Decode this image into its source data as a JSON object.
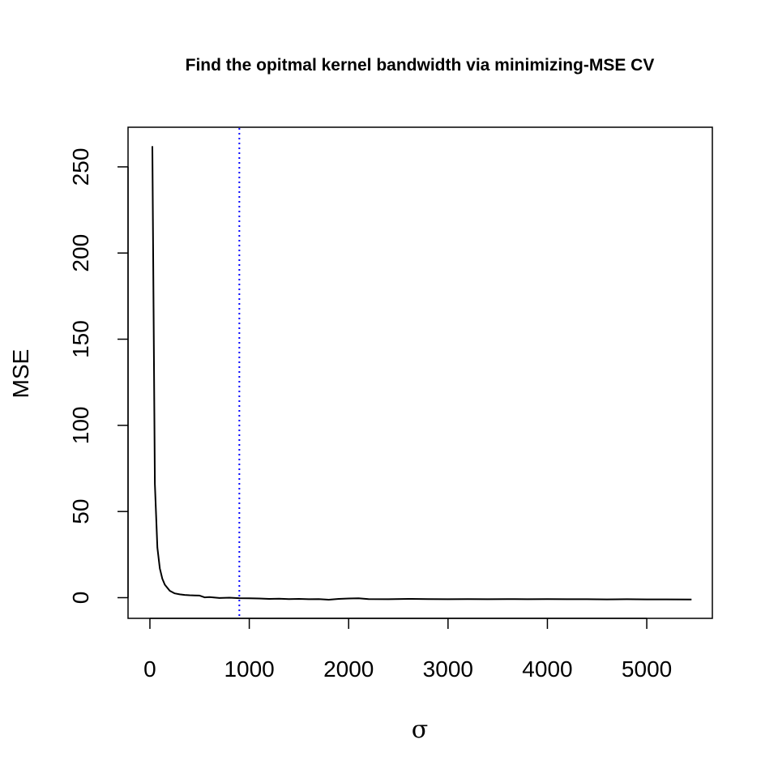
{
  "chart_data": {
    "type": "line",
    "title": "Find the opitmal kernel bandwidth via minimizing-MSE CV",
    "xlabel": "σ",
    "ylabel": "MSE",
    "xlim": [
      -220,
      5660
    ],
    "ylim": [
      -12,
      273
    ],
    "xticks": [
      0,
      1000,
      2000,
      3000,
      4000,
      5000
    ],
    "xtick_labels": [
      "0",
      "1000",
      "2000",
      "3000",
      "4000",
      "5000"
    ],
    "yticks": [
      0,
      50,
      100,
      150,
      200,
      250
    ],
    "ytick_labels": [
      "0",
      "50",
      "100",
      "150",
      "200",
      "250"
    ],
    "grid": false,
    "series": [
      {
        "color": "#000000",
        "x": [
          25,
          50,
          75,
          100,
          125,
          150,
          200,
          250,
          300,
          350,
          400,
          450,
          500,
          550,
          600,
          700,
          800,
          900,
          1000,
          1100,
          1200,
          1300,
          1400,
          1500,
          1600,
          1700,
          1800,
          1900,
          2000,
          2100,
          2200,
          2400,
          2600,
          2800,
          3000,
          3200,
          3400,
          3600,
          3800,
          4000,
          4200,
          4400,
          4600,
          4800,
          5000,
          5200,
          5450
        ],
        "y": [
          262,
          66,
          29,
          17,
          11,
          7.5,
          4,
          2.5,
          1.9,
          1.6,
          1.4,
          1.3,
          1.2,
          0.2,
          0.3,
          -0.2,
          0,
          -0.3,
          -0.4,
          -0.5,
          -0.7,
          -0.6,
          -0.8,
          -0.7,
          -0.9,
          -0.8,
          -1.2,
          -0.7,
          -0.5,
          -0.4,
          -0.8,
          -0.9,
          -0.7,
          -0.8,
          -0.9,
          -0.8,
          -0.9,
          -0.8,
          -0.9,
          -0.8,
          -0.9,
          -0.9,
          -1.0,
          -0.9,
          -1.0,
          -1.0,
          -1.1
        ]
      }
    ],
    "vline": {
      "x": 900,
      "color": "#0000ff",
      "style": "dotted"
    }
  }
}
